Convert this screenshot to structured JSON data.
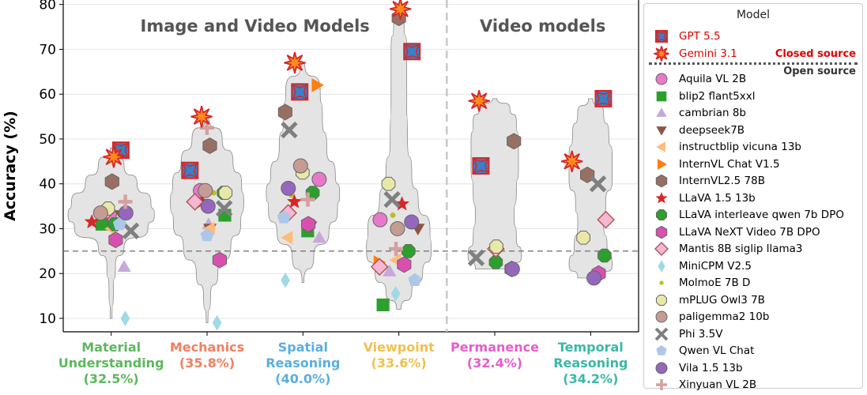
{
  "chart_data": {
    "type": "violin",
    "ylabel": "Accuracy (%)",
    "ylim": [
      7,
      81
    ],
    "yticks": [
      10,
      20,
      30,
      40,
      50,
      60,
      70,
      80
    ],
    "chance_line": 25,
    "grid": "horizontal",
    "groups": [
      {
        "label": "Image and Video Models",
        "start": 0,
        "end": 3
      },
      {
        "label": "Video models",
        "start": 4,
        "end": 5
      }
    ],
    "categories": [
      {
        "name": "Material\nUnderstanding",
        "pct": "(32.5%)",
        "color": "#5cb85c"
      },
      {
        "name": "Mechanics",
        "pct": "(35.8%)",
        "color": "#f08060"
      },
      {
        "name": "Spatial\nReasoning",
        "pct": "(40.0%)",
        "color": "#5aaee0"
      },
      {
        "name": "Viewpoint",
        "pct": "(33.6%)",
        "color": "#f0c050"
      },
      {
        "name": "Permanence",
        "pct": "(32.4%)",
        "color": "#e85cc8"
      },
      {
        "name": "Temporal\nReasoning",
        "pct": "(34.2%)",
        "color": "#3ab8a8"
      }
    ],
    "violins": [
      {
        "min": 10,
        "max": 48,
        "profile": [
          [
            10,
            0.02
          ],
          [
            16,
            0.05
          ],
          [
            22,
            0.1
          ],
          [
            26,
            0.3
          ],
          [
            30,
            0.85
          ],
          [
            33,
            1.0
          ],
          [
            36,
            0.92
          ],
          [
            40,
            0.6
          ],
          [
            44,
            0.3
          ],
          [
            48,
            0.02
          ]
        ]
      },
      {
        "min": 9,
        "max": 55,
        "profile": [
          [
            9,
            0.02
          ],
          [
            15,
            0.08
          ],
          [
            20,
            0.25
          ],
          [
            26,
            0.55
          ],
          [
            31,
            0.78
          ],
          [
            36,
            0.85
          ],
          [
            40,
            0.8
          ],
          [
            45,
            0.6
          ],
          [
            50,
            0.35
          ],
          [
            55,
            0.04
          ]
        ]
      },
      {
        "min": 18,
        "max": 67,
        "profile": [
          [
            18,
            0.02
          ],
          [
            24,
            0.25
          ],
          [
            29,
            0.6
          ],
          [
            34,
            0.8
          ],
          [
            38,
            0.85
          ],
          [
            42,
            0.75
          ],
          [
            48,
            0.55
          ],
          [
            55,
            0.45
          ],
          [
            61,
            0.4
          ],
          [
            67,
            0.04
          ]
        ]
      },
      {
        "min": 12,
        "max": 79,
        "profile": [
          [
            12,
            0.05
          ],
          [
            16,
            0.3
          ],
          [
            20,
            0.55
          ],
          [
            25,
            0.75
          ],
          [
            30,
            0.72
          ],
          [
            36,
            0.45
          ],
          [
            42,
            0.3
          ],
          [
            50,
            0.2
          ],
          [
            60,
            0.18
          ],
          [
            70,
            0.18
          ],
          [
            76,
            0.12
          ],
          [
            79,
            0.02
          ]
        ]
      },
      {
        "min": 21,
        "max": 59,
        "profile": [
          [
            21,
            0.45
          ],
          [
            24,
            0.62
          ],
          [
            28,
            0.5
          ],
          [
            33,
            0.45
          ],
          [
            38,
            0.5
          ],
          [
            44,
            0.55
          ],
          [
            49,
            0.55
          ],
          [
            54,
            0.5
          ],
          [
            57,
            0.35
          ],
          [
            59,
            0.05
          ]
        ]
      },
      {
        "min": 19,
        "max": 59,
        "profile": [
          [
            19,
            0.3
          ],
          [
            22,
            0.5
          ],
          [
            26,
            0.38
          ],
          [
            31,
            0.3
          ],
          [
            36,
            0.35
          ],
          [
            41,
            0.5
          ],
          [
            46,
            0.5
          ],
          [
            51,
            0.42
          ],
          [
            56,
            0.3
          ],
          [
            59,
            0.05
          ]
        ]
      }
    ],
    "models": [
      {
        "name": "GPT 5.5",
        "marker": "square-star",
        "color": "#3b7fc4",
        "edge": "#d62728",
        "closed": true
      },
      {
        "name": "Gemini 3.1",
        "marker": "star",
        "color": "#ff8c1a",
        "edge": "#d62728",
        "closed": true
      },
      {
        "name": "Aquila VL 2B",
        "marker": "circle",
        "color": "#e67ac9"
      },
      {
        "name": "blip2 flant5xxl",
        "marker": "square",
        "color": "#2ca02c"
      },
      {
        "name": "cambrian 8b",
        "marker": "triangle-up",
        "color": "#c5a9d9"
      },
      {
        "name": "deepseek7B",
        "marker": "triangle-down",
        "color": "#8c564b"
      },
      {
        "name": "instructblip vicuna 13b",
        "marker": "triangle-left",
        "color": "#ffbb78"
      },
      {
        "name": "InternVL Chat V1.5",
        "marker": "triangle-right",
        "color": "#ff7f0e"
      },
      {
        "name": "InternVL2.5 78B",
        "marker": "hexagon",
        "color": "#9a6f63"
      },
      {
        "name": "LLaVA 1.5 13b",
        "marker": "star-plain",
        "color": "#d62728"
      },
      {
        "name": "LLaVA interleave qwen 7b DPO",
        "marker": "octagon",
        "color": "#2ca02c"
      },
      {
        "name": "LLaVA NeXT Video 7B DPO",
        "marker": "hexagon",
        "color": "#d94fb0"
      },
      {
        "name": "Mantis 8B siglip llama3",
        "marker": "diamond",
        "color": "#f7b6d2"
      },
      {
        "name": "MiniCPM V2.5",
        "marker": "thin-diamond",
        "color": "#9edae5"
      },
      {
        "name": "MolmoE 7B D",
        "marker": "point",
        "color": "#bcbd22"
      },
      {
        "name": "mPLUG Owl3 7B",
        "marker": "octagon",
        "color": "#e8e8a8"
      },
      {
        "name": "paligemma2 10b",
        "marker": "circle",
        "color": "#c49c94"
      },
      {
        "name": "Phi 3.5V",
        "marker": "x",
        "color": "#7f7f7f"
      },
      {
        "name": "Qwen VL Chat",
        "marker": "pentagon",
        "color": "#aec7e8"
      },
      {
        "name": "Vila 1.5 13b",
        "marker": "circle",
        "color": "#9467bd"
      },
      {
        "name": "Xinyuan VL 2B",
        "marker": "plus",
        "color": "#d4a0a0"
      }
    ],
    "points": [
      {
        "model": "GPT 5.5",
        "values": [
          47.5,
          43,
          60.5,
          69.5,
          44,
          59
        ]
      },
      {
        "model": "Gemini 3.1",
        "values": [
          46,
          55,
          67,
          79,
          58.5,
          45
        ]
      },
      {
        "model": "Aquila VL 2B",
        "values": [
          33,
          38.5,
          41,
          32,
          null,
          null
        ]
      },
      {
        "model": "blip2 flant5xxl",
        "values": [
          31,
          33,
          29.5,
          13,
          null,
          null
        ]
      },
      {
        "model": "cambrian 8b",
        "values": [
          21.5,
          31,
          28,
          20.5,
          null,
          null
        ]
      },
      {
        "model": "deepseek7B",
        "values": [
          33,
          30,
          30.5,
          30,
          null,
          null
        ]
      },
      {
        "model": "instructblip vicuna 13b",
        "values": [
          30,
          30,
          28,
          23,
          null,
          null
        ]
      },
      {
        "model": "InternVL Chat V1.5",
        "values": [
          null,
          null,
          62,
          22.5,
          null,
          null
        ]
      },
      {
        "model": "InternVL2.5 78B",
        "values": [
          40.5,
          48.5,
          56,
          77,
          49.5,
          42
        ]
      },
      {
        "model": "LLaVA 1.5 13b",
        "values": [
          31.5,
          36,
          36,
          35.5,
          null,
          null
        ]
      },
      {
        "model": "LLaVA interleave qwen 7b DPO",
        "values": [
          31,
          38,
          38,
          25,
          22.5,
          24
        ]
      },
      {
        "model": "LLaVA NeXT Video 7B DPO",
        "values": [
          27.5,
          23,
          31,
          22,
          21,
          20
        ]
      },
      {
        "model": "Mantis 8B siglip llama3",
        "values": [
          34,
          36,
          33.5,
          21.5,
          25.5,
          32
        ]
      },
      {
        "model": "MiniCPM V2.5",
        "values": [
          10,
          9,
          18.5,
          15.5,
          null,
          null
        ]
      },
      {
        "model": "MolmoE 7B D",
        "values": [
          34,
          38,
          37.5,
          33,
          null,
          null
        ]
      },
      {
        "model": "mPLUG Owl3 7B",
        "values": [
          34.5,
          38,
          42.5,
          40,
          26,
          28
        ]
      },
      {
        "model": "paligemma2 10b",
        "values": [
          33.5,
          38.5,
          44,
          30,
          null,
          null
        ]
      },
      {
        "model": "Phi 3.5V",
        "values": [
          29.5,
          34.5,
          52,
          36.5,
          23.5,
          40
        ]
      },
      {
        "model": "Qwen VL Chat",
        "values": [
          31,
          28.5,
          32.5,
          18.5,
          null,
          null
        ]
      },
      {
        "model": "Vila 1.5 13b",
        "values": [
          33.5,
          35,
          39,
          31.5,
          21,
          19
        ]
      },
      {
        "model": "Xinyuan VL 2B",
        "values": [
          36,
          52.5,
          36.5,
          25.5,
          null,
          null
        ]
      }
    ]
  },
  "legend": {
    "title": "Model",
    "closed_label": "Closed source",
    "open_label": "Open source"
  }
}
